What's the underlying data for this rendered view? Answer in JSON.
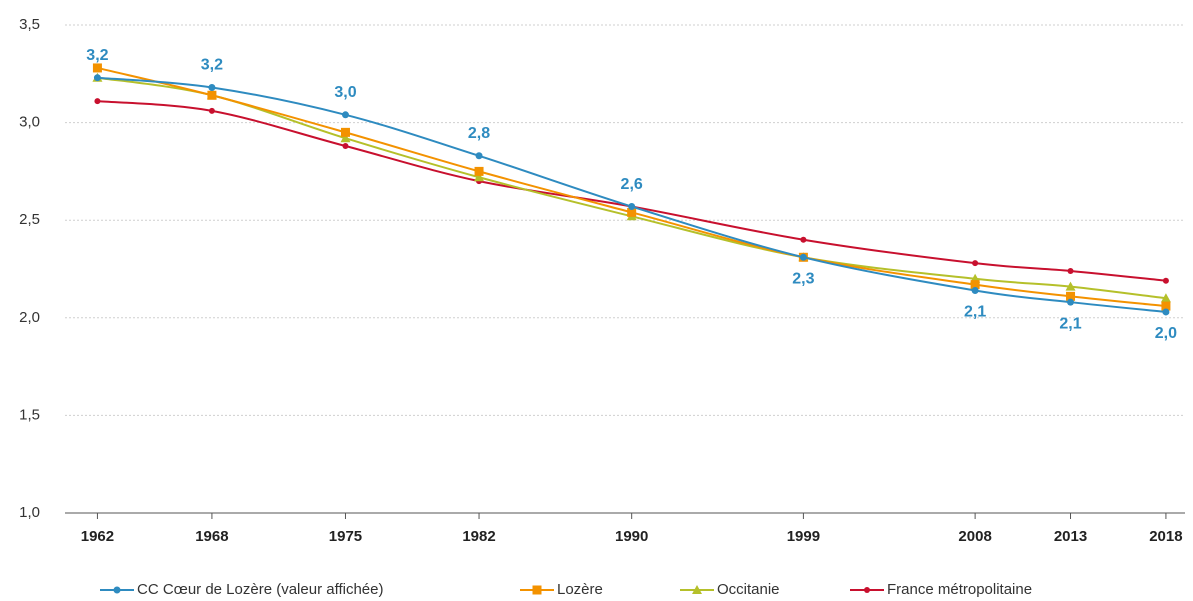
{
  "chart_data": {
    "type": "line",
    "x": [
      1962,
      1968,
      1975,
      1982,
      1990,
      1999,
      2008,
      2013,
      2018
    ],
    "xlim": [
      1960.3,
      2019
    ],
    "xticks": [
      1962,
      1968,
      1975,
      1982,
      1990,
      1999,
      2008,
      2013,
      2018
    ],
    "ylim": [
      1,
      3.5
    ],
    "yticks": [
      {
        "value": 1,
        "label": "1,0"
      },
      {
        "value": 1.5,
        "label": "1,5"
      },
      {
        "value": 2,
        "label": "2,0"
      },
      {
        "value": 2.5,
        "label": "2,5"
      },
      {
        "value": 3,
        "label": "3,0"
      },
      {
        "value": 3.5,
        "label": "3,5"
      }
    ],
    "grid": true,
    "legend": "bottom",
    "series": [
      {
        "name": "CC Cœur de Lozère (valeur affichée)",
        "color": "#2e8bc0",
        "marker": "circle",
        "values": [
          3.23,
          3.18,
          3.04,
          2.83,
          2.57,
          2.31,
          2.14,
          2.08,
          2.03
        ],
        "value_labels": [
          "3,2",
          "3,2",
          "3,0",
          "2,8",
          "2,6",
          "2,3",
          "2,1",
          "2,1",
          "2,0"
        ]
      },
      {
        "name": "Lozère",
        "color": "#f39200",
        "marker": "square",
        "values": [
          3.28,
          3.14,
          2.95,
          2.75,
          2.54,
          2.31,
          2.17,
          2.11,
          2.06
        ]
      },
      {
        "name": "Occitanie",
        "color": "#b5c02a",
        "marker": "triangle",
        "values": [
          3.23,
          3.14,
          2.92,
          2.72,
          2.52,
          2.31,
          2.2,
          2.16,
          2.1
        ]
      },
      {
        "name": "France métropolitaine",
        "color": "#c8102e",
        "marker": "dot",
        "values": [
          3.11,
          3.06,
          2.88,
          2.7,
          2.57,
          2.4,
          2.28,
          2.24,
          2.19
        ]
      }
    ]
  }
}
